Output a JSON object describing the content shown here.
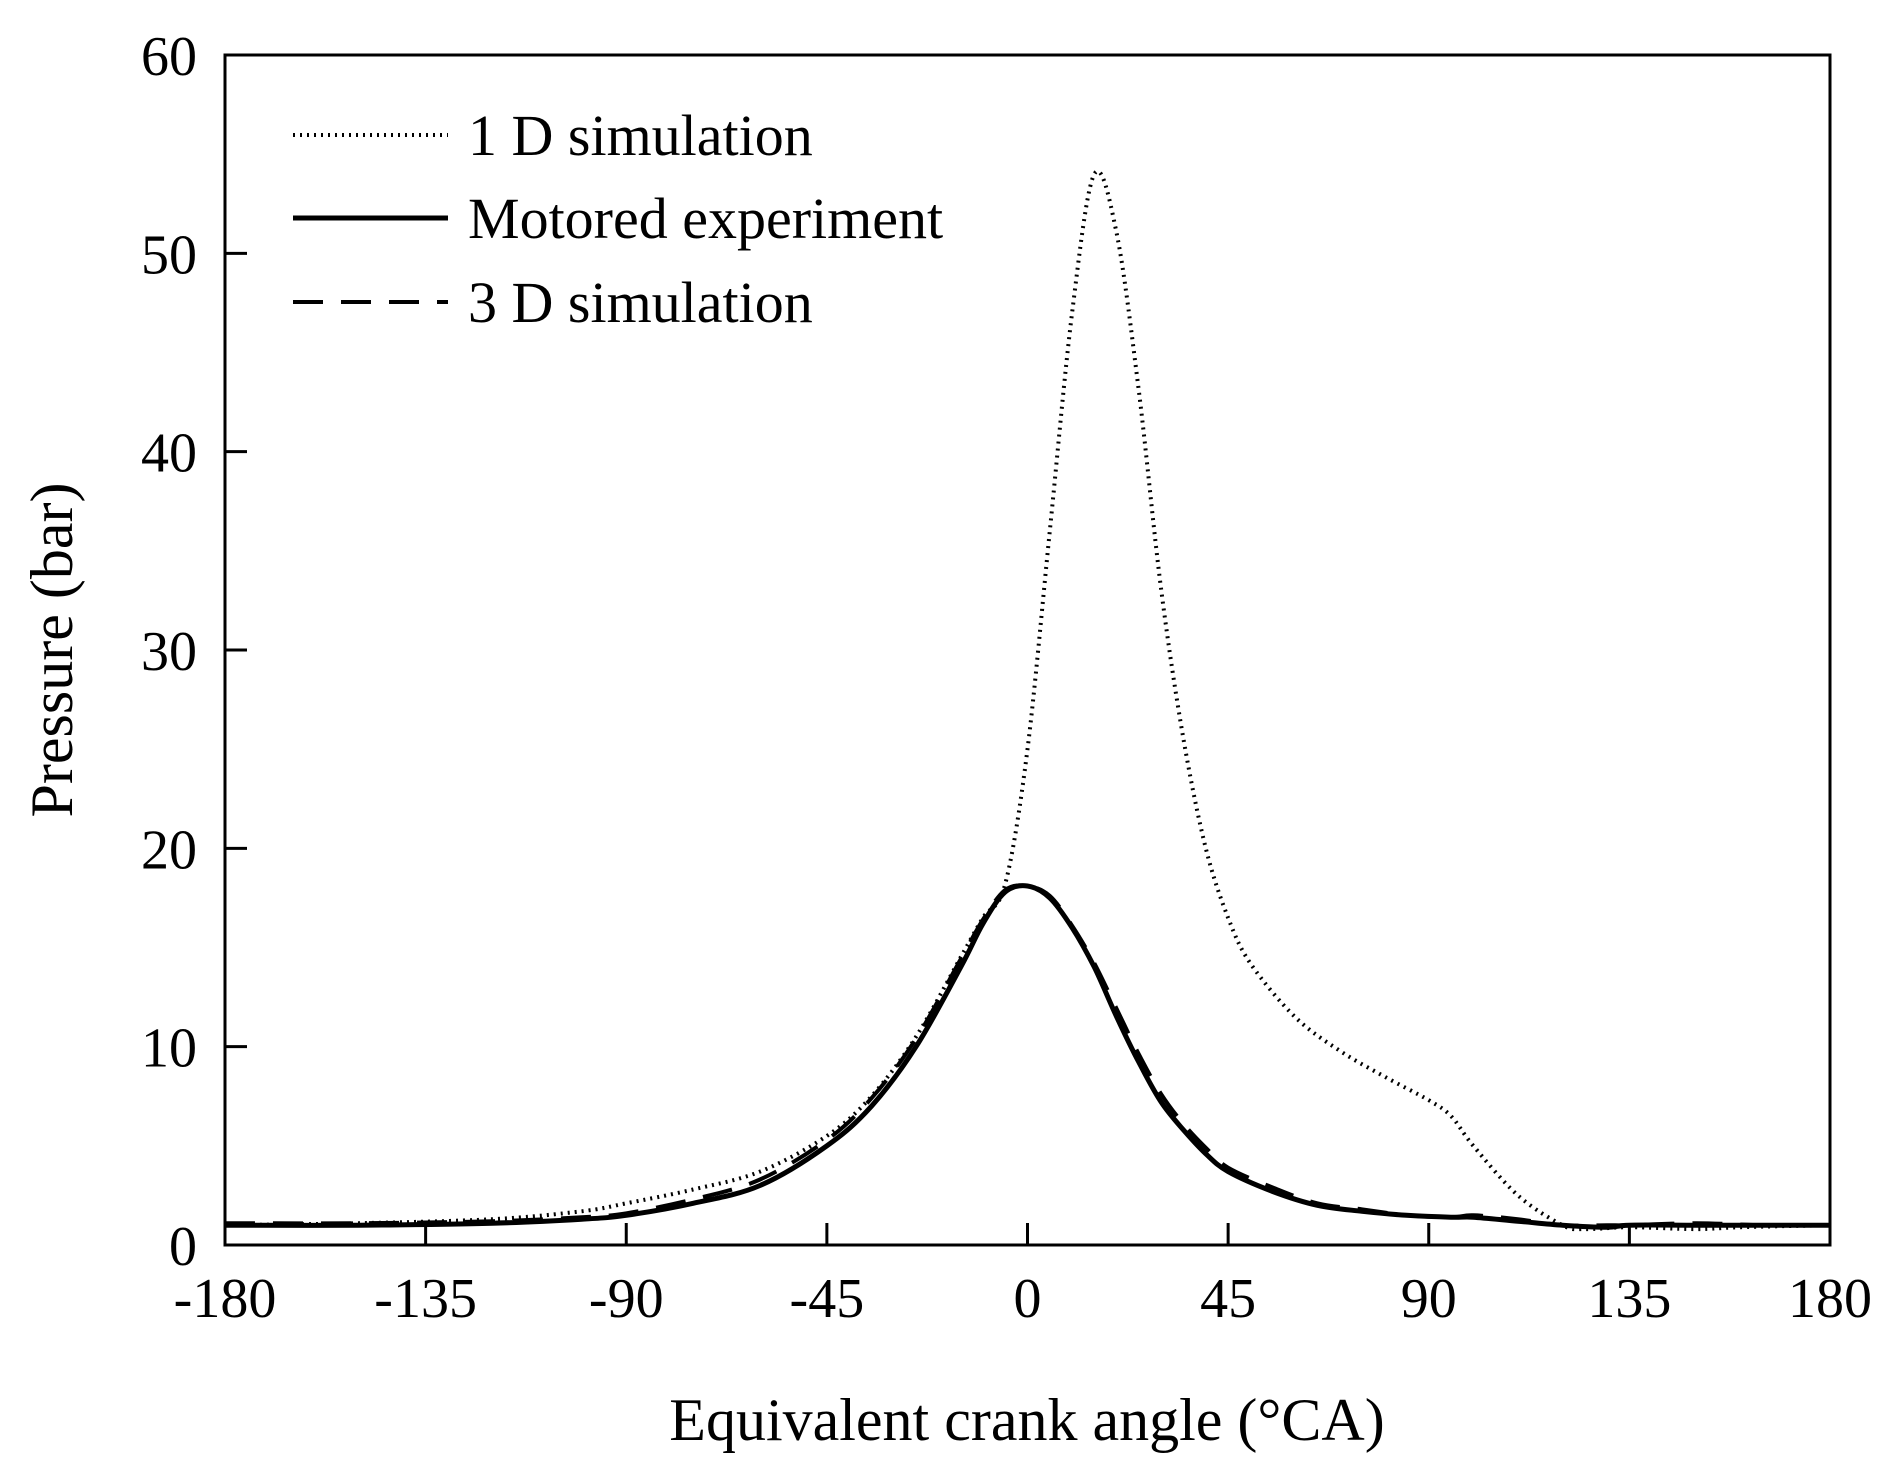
{
  "chart_data": {
    "type": "line",
    "title": "",
    "xlabel": "Equivalent crank angle (°CA)",
    "ylabel": "Pressure (bar)",
    "xlim": [
      -180,
      180
    ],
    "ylim": [
      0,
      60
    ],
    "xticks": [
      -180,
      -135,
      -90,
      -45,
      0,
      45,
      90,
      135,
      180
    ],
    "yticks": [
      0,
      10,
      20,
      30,
      40,
      50,
      60
    ],
    "grid": false,
    "legend_position": "top-left",
    "series": [
      {
        "name": "1 D simulation",
        "style": "dotted",
        "color": "#000000",
        "x": [
          -180,
          -150,
          -120,
          -100,
          -90,
          -75,
          -60,
          -45,
          -35,
          -25,
          -15,
          -10,
          -5,
          0,
          5,
          10,
          15,
          20,
          25,
          30,
          35,
          40,
          45,
          50,
          60,
          70,
          80,
          90,
          95,
          100,
          110,
          120,
          125,
          135,
          150,
          160,
          180
        ],
        "y": [
          1.0,
          1.1,
          1.3,
          1.7,
          2.1,
          2.8,
          3.7,
          5.5,
          7.5,
          10.5,
          14.5,
          16.5,
          18.2,
          25,
          36,
          47,
          54,
          51,
          43,
          33,
          25.5,
          20,
          16.5,
          14.2,
          11.5,
          9.8,
          8.5,
          7.3,
          6.5,
          5.0,
          2.5,
          1.0,
          0.8,
          0.9,
          0.8,
          0.9,
          1.0
        ]
      },
      {
        "name": "Motored experiment",
        "style": "solid",
        "color": "#000000",
        "x": [
          -180,
          -150,
          -120,
          -100,
          -90,
          -75,
          -60,
          -45,
          -35,
          -25,
          -15,
          -10,
          -5,
          0,
          5,
          10,
          15,
          20,
          25,
          30,
          35,
          40,
          45,
          55,
          65,
          75,
          85,
          95,
          100,
          110,
          120,
          130,
          135,
          150,
          165,
          180
        ],
        "y": [
          1.0,
          1.0,
          1.1,
          1.3,
          1.5,
          2.1,
          3.0,
          5.0,
          7.0,
          10.0,
          14.0,
          16.2,
          17.8,
          18.1,
          17.5,
          16.0,
          14.0,
          11.5,
          9.2,
          7.2,
          5.8,
          4.6,
          3.7,
          2.7,
          2.0,
          1.7,
          1.5,
          1.4,
          1.4,
          1.2,
          1.0,
          0.9,
          1.0,
          1.0,
          1.0,
          1.0
        ]
      },
      {
        "name": "3 D simulation",
        "style": "dashed",
        "color": "#000000",
        "x": [
          -180,
          -150,
          -120,
          -100,
          -90,
          -75,
          -60,
          -45,
          -35,
          -25,
          -15,
          -10,
          -5,
          0,
          5,
          10,
          15,
          20,
          25,
          30,
          35,
          40,
          45,
          55,
          65,
          75,
          85,
          95,
          100,
          110,
          120,
          130,
          135,
          150,
          165,
          180
        ],
        "y": [
          1.1,
          1.1,
          1.2,
          1.4,
          1.6,
          2.3,
          3.3,
          5.3,
          7.4,
          10.4,
          14.4,
          16.4,
          17.9,
          18.1,
          17.6,
          16.1,
          14.2,
          11.9,
          9.6,
          7.6,
          6.1,
          4.9,
          3.9,
          2.9,
          2.1,
          1.8,
          1.5,
          1.4,
          1.5,
          1.3,
          1.0,
          1.0,
          1.0,
          1.1,
          1.0,
          1.0
        ]
      }
    ]
  }
}
